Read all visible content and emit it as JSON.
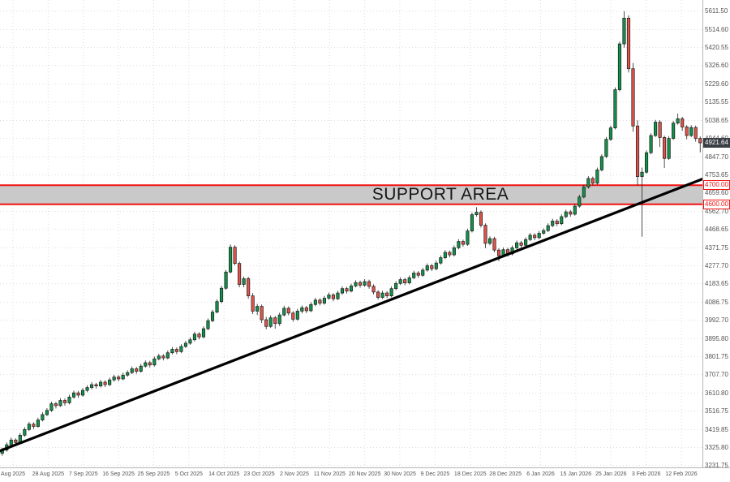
{
  "chart_data": {
    "type": "candlestick",
    "title": "",
    "grid": true,
    "current_price": "4921.64",
    "support_area": {
      "label": "SUPPORT AREA",
      "upper": "4700.00",
      "lower": "4600.00"
    },
    "trendline": {
      "start_price": 3308,
      "end_price": 4732
    },
    "ylim": [
      3230,
      5670
    ],
    "colors": {
      "up": "#12924a",
      "down": "#e2544b",
      "wick": "#222222",
      "body_stroke": "#1b1b1b",
      "grid": "#dcdcdc",
      "support_line": "#f21111",
      "band": "#c9c9c9",
      "trend": "#000000",
      "tag_bg": "#3a3e45",
      "axis_text": "#555555"
    },
    "x_tick_labels": [
      "Aug 2025",
      "28 Aug 2025",
      "7 Sep 2025",
      "16 Sep 2025",
      "25 Sep 2025",
      "5 Oct 2025",
      "14 Oct 2025",
      "23 Oct 2025",
      "2 Nov 2025",
      "11 Nov 2025",
      "20 Nov 2025",
      "30 Nov 2025",
      "9 Dec 2025",
      "18 Dec 2025",
      "28 Dec 2025",
      "6 Jan 2026",
      "15 Jan 2026",
      "25 Jan 2026",
      "3 Feb 2026",
      "12 Feb 2026"
    ],
    "y_tick_labels": [
      "5611.50",
      "5514.60",
      "5420.55",
      "5326.60",
      "5229.60",
      "5135.55",
      "5038.65",
      "4944.60",
      "4847.70",
      "4753.65",
      "4659.60",
      "4562.70",
      "4468.65",
      "4371.75",
      "4277.70",
      "4183.65",
      "4086.75",
      "3992.70",
      "3895.80",
      "3801.75",
      "3707.70",
      "3610.80",
      "3516.75",
      "3419.85",
      "3325.80",
      "3231.75"
    ],
    "candles": [
      [
        3295,
        3325,
        3282,
        3312
      ],
      [
        3312,
        3352,
        3304,
        3340
      ],
      [
        3340,
        3378,
        3330,
        3365
      ],
      [
        3365,
        3374,
        3340,
        3352
      ],
      [
        3352,
        3402,
        3345,
        3390
      ],
      [
        3390,
        3432,
        3382,
        3420
      ],
      [
        3420,
        3460,
        3412,
        3448
      ],
      [
        3448,
        3458,
        3422,
        3436
      ],
      [
        3436,
        3482,
        3430,
        3470
      ],
      [
        3470,
        3510,
        3462,
        3498
      ],
      [
        3498,
        3532,
        3490,
        3520
      ],
      [
        3520,
        3566,
        3512,
        3555
      ],
      [
        3555,
        3565,
        3530,
        3545
      ],
      [
        3545,
        3584,
        3538,
        3572
      ],
      [
        3572,
        3582,
        3545,
        3560
      ],
      [
        3560,
        3602,
        3552,
        3590
      ],
      [
        3590,
        3624,
        3582,
        3612
      ],
      [
        3612,
        3622,
        3586,
        3600
      ],
      [
        3600,
        3637,
        3592,
        3625
      ],
      [
        3625,
        3652,
        3615,
        3640
      ],
      [
        3640,
        3668,
        3630,
        3655
      ],
      [
        3655,
        3664,
        3635,
        3648
      ],
      [
        3648,
        3680,
        3640,
        3668
      ],
      [
        3668,
        3678,
        3642,
        3655
      ],
      [
        3655,
        3692,
        3648,
        3680
      ],
      [
        3680,
        3707,
        3670,
        3695
      ],
      [
        3695,
        3705,
        3672,
        3685
      ],
      [
        3685,
        3718,
        3678,
        3705
      ],
      [
        3705,
        3730,
        3696,
        3718
      ],
      [
        3718,
        3750,
        3710,
        3738
      ],
      [
        3738,
        3748,
        3712,
        3725
      ],
      [
        3725,
        3764,
        3718,
        3752
      ],
      [
        3752,
        3782,
        3744,
        3770
      ],
      [
        3770,
        3780,
        3745,
        3758
      ],
      [
        3758,
        3802,
        3750,
        3790
      ],
      [
        3790,
        3817,
        3782,
        3805
      ],
      [
        3805,
        3815,
        3782,
        3795
      ],
      [
        3795,
        3834,
        3788,
        3822
      ],
      [
        3822,
        3852,
        3814,
        3840
      ],
      [
        3840,
        3850,
        3815,
        3828
      ],
      [
        3828,
        3867,
        3820,
        3855
      ],
      [
        3855,
        3884,
        3847,
        3872
      ],
      [
        3872,
        3902,
        3864,
        3890
      ],
      [
        3890,
        3932,
        3882,
        3920
      ],
      [
        3920,
        3930,
        3892,
        3905
      ],
      [
        3905,
        3960,
        3898,
        3948
      ],
      [
        3948,
        4002,
        3940,
        3990
      ],
      [
        3990,
        4047,
        3982,
        4035
      ],
      [
        4035,
        4102,
        4028,
        4090
      ],
      [
        4090,
        4172,
        4082,
        4160
      ],
      [
        4160,
        4255,
        4152,
        4245
      ],
      [
        4245,
        4390,
        4238,
        4375
      ],
      [
        4375,
        4385,
        4280,
        4290
      ],
      [
        4290,
        4300,
        4165,
        4180
      ],
      [
        4180,
        4222,
        4165,
        4210
      ],
      [
        4210,
        4220,
        4105,
        4120
      ],
      [
        4120,
        4135,
        4025,
        4040
      ],
      [
        4040,
        4078,
        4020,
        4065
      ],
      [
        4065,
        4075,
        3978,
        3995
      ],
      [
        3995,
        4010,
        3945,
        3960
      ],
      [
        3960,
        4018,
        3952,
        4005
      ],
      [
        4005,
        4015,
        3948,
        3975
      ],
      [
        3975,
        4032,
        3962,
        4020
      ],
      [
        4020,
        4068,
        4012,
        4055
      ],
      [
        4055,
        4065,
        4018,
        4030
      ],
      [
        4030,
        4040,
        3985,
        3998
      ],
      [
        3998,
        4052,
        3990,
        4040
      ],
      [
        4040,
        4070,
        4028,
        4058
      ],
      [
        4058,
        4068,
        4030,
        4042
      ],
      [
        4042,
        4087,
        4035,
        4075
      ],
      [
        4075,
        4110,
        4066,
        4098
      ],
      [
        4098,
        4108,
        4070,
        4082
      ],
      [
        4082,
        4120,
        4074,
        4108
      ],
      [
        4108,
        4137,
        4100,
        4125
      ],
      [
        4125,
        4135,
        4092,
        4105
      ],
      [
        4105,
        4147,
        4098,
        4135
      ],
      [
        4135,
        4170,
        4126,
        4158
      ],
      [
        4158,
        4168,
        4132,
        4145
      ],
      [
        4145,
        4184,
        4138,
        4172
      ],
      [
        4172,
        4202,
        4164,
        4190
      ],
      [
        4190,
        4200,
        4163,
        4176
      ],
      [
        4176,
        4207,
        4168,
        4195
      ],
      [
        4195,
        4205,
        4158,
        4170
      ],
      [
        4170,
        4180,
        4128,
        4140
      ],
      [
        4140,
        4150,
        4100,
        4112
      ],
      [
        4112,
        4147,
        4104,
        4135
      ],
      [
        4135,
        4145,
        4108,
        4120
      ],
      [
        4120,
        4170,
        4112,
        4158
      ],
      [
        4158,
        4197,
        4150,
        4185
      ],
      [
        4185,
        4217,
        4177,
        4205
      ],
      [
        4205,
        4215,
        4176,
        4188
      ],
      [
        4188,
        4227,
        4180,
        4215
      ],
      [
        4215,
        4252,
        4207,
        4240
      ],
      [
        4240,
        4250,
        4215,
        4228
      ],
      [
        4228,
        4267,
        4220,
        4255
      ],
      [
        4255,
        4290,
        4247,
        4278
      ],
      [
        4278,
        4288,
        4250,
        4262
      ],
      [
        4262,
        4304,
        4254,
        4292
      ],
      [
        4292,
        4332,
        4284,
        4320
      ],
      [
        4320,
        4360,
        4312,
        4348
      ],
      [
        4348,
        4358,
        4322,
        4335
      ],
      [
        4335,
        4384,
        4327,
        4372
      ],
      [
        4372,
        4417,
        4364,
        4405
      ],
      [
        4405,
        4415,
        4377,
        4390
      ],
      [
        4390,
        4472,
        4382,
        4460
      ],
      [
        4460,
        4557,
        4452,
        4545
      ],
      [
        4545,
        4585,
        4535,
        4558
      ],
      [
        4558,
        4568,
        4478,
        4490
      ],
      [
        4490,
        4500,
        4370,
        4395
      ],
      [
        4395,
        4432,
        4385,
        4420
      ],
      [
        4420,
        4430,
        4348,
        4360
      ],
      [
        4360,
        4370,
        4302,
        4330
      ],
      [
        4330,
        4374,
        4322,
        4362
      ],
      [
        4362,
        4372,
        4326,
        4340
      ],
      [
        4340,
        4384,
        4332,
        4372
      ],
      [
        4372,
        4410,
        4364,
        4398
      ],
      [
        4398,
        4408,
        4372,
        4385
      ],
      [
        4385,
        4427,
        4377,
        4415
      ],
      [
        4415,
        4450,
        4407,
        4438
      ],
      [
        4438,
        4448,
        4412,
        4425
      ],
      [
        4425,
        4460,
        4417,
        4448
      ],
      [
        4448,
        4474,
        4440,
        4462
      ],
      [
        4462,
        4500,
        4454,
        4488
      ],
      [
        4488,
        4524,
        4480,
        4512
      ],
      [
        4512,
        4522,
        4485,
        4498
      ],
      [
        4498,
        4547,
        4490,
        4535
      ],
      [
        4535,
        4572,
        4527,
        4560
      ],
      [
        4560,
        4570,
        4535,
        4548
      ],
      [
        4548,
        4602,
        4540,
        4590
      ],
      [
        4590,
        4650,
        4582,
        4638
      ],
      [
        4638,
        4702,
        4630,
        4690
      ],
      [
        4690,
        4747,
        4682,
        4735
      ],
      [
        4735,
        4745,
        4698,
        4710
      ],
      [
        4710,
        4792,
        4702,
        4780
      ],
      [
        4780,
        4862,
        4772,
        4850
      ],
      [
        4850,
        4952,
        4842,
        4940
      ],
      [
        4940,
        5012,
        4932,
        5000
      ],
      [
        5000,
        5212,
        4992,
        5200
      ],
      [
        5200,
        5452,
        5192,
        5440
      ],
      [
        5440,
        5611,
        5420,
        5575
      ],
      [
        5575,
        5590,
        5290,
        5310
      ],
      [
        5310,
        5340,
        4980,
        5010
      ],
      [
        5010,
        5040,
        4700,
        4745
      ],
      [
        4745,
        4792,
        4430,
        4768
      ],
      [
        4768,
        4882,
        4760,
        4870
      ],
      [
        4870,
        4972,
        4862,
        4960
      ],
      [
        4960,
        5042,
        4952,
        5030
      ],
      [
        5030,
        5040,
        4900,
        4950
      ],
      [
        4950,
        4960,
        4790,
        4840
      ],
      [
        4840,
        4957,
        4832,
        4945
      ],
      [
        4945,
        5037,
        4937,
        5025
      ],
      [
        5025,
        5075,
        5017,
        5048
      ],
      [
        5048,
        5058,
        4985,
        5005
      ],
      [
        5005,
        5015,
        4940,
        4960
      ],
      [
        4960,
        5014,
        4952,
        5002
      ],
      [
        5002,
        5012,
        4928,
        4945
      ],
      [
        4945,
        4955,
        4872,
        4921.64
      ]
    ]
  }
}
